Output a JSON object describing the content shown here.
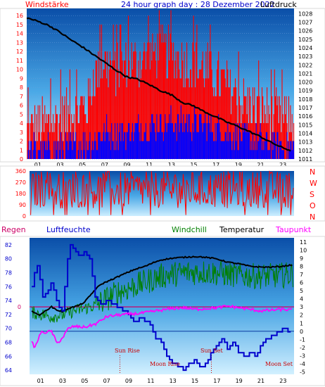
{
  "header": {
    "left_label": "Windstärke",
    "title": "24 hour graph day : 28 Dezember 2022",
    "right_label": "Luftdruck"
  },
  "direction_labels": [
    "N",
    "W",
    "S",
    "O",
    "N"
  ],
  "bottom_header": {
    "regen": "Regen",
    "luftfeuchte": "Luftfeuchte",
    "windchill": "Windchill",
    "temperatur": "Temperatur",
    "taupunkt": "Taupunkt"
  },
  "annotations": {
    "sun_rise": "Sun Rise",
    "sun_set": "Sun Set",
    "moon_rise": "Moon Rise",
    "moon_set": "Moon Set"
  },
  "colors": {
    "panel_top": "#0a4ea8",
    "panel_bottom": "#cdeeff",
    "wind_gust": "#ff0000",
    "wind_avg": "#0000ff",
    "pressure": "#000000",
    "direction": "#ff0000",
    "humidity": "#0000cc",
    "windchill": "#008000",
    "temperature": "#000000",
    "dewpoint": "#ff00ff",
    "rain": "#cc0066",
    "border": "#d8d8d8"
  },
  "chart_data": [
    {
      "type": "bar",
      "name": "wind_pressure",
      "x_ticks": [
        "01",
        "03",
        "05",
        "07",
        "09",
        "11",
        "13",
        "15",
        "17",
        "19",
        "21",
        "23"
      ],
      "xlim": [
        0,
        24
      ],
      "y_left_ticks": [
        0,
        1,
        2,
        3,
        4,
        5,
        6,
        7,
        8,
        9,
        10,
        11,
        12,
        13,
        14,
        15,
        16
      ],
      "y_left_lim": [
        0,
        16.8
      ],
      "y_right_ticks": [
        1011,
        1012,
        1013,
        1014,
        1015,
        1016,
        1017,
        1018,
        1019,
        1020,
        1021,
        1022,
        1023,
        1024,
        1025,
        1026,
        1027,
        1028
      ],
      "y_right_lim": [
        1011,
        1028.6
      ],
      "gust_profile_hours": [
        0,
        2,
        4,
        5.5,
        6,
        7,
        8,
        10,
        12,
        14,
        16,
        18,
        20,
        22,
        24
      ],
      "gust_profile_levels": [
        3,
        4,
        5,
        6,
        9,
        11,
        10,
        11,
        12,
        11,
        10,
        8,
        6,
        5,
        4
      ],
      "avg_profile_hours": [
        0,
        3,
        6,
        7,
        9,
        12,
        15,
        18,
        21,
        24
      ],
      "avg_profile_levels": [
        1,
        1,
        2,
        3,
        3,
        4,
        4,
        3,
        2,
        1
      ],
      "pressure_hours": [
        0,
        1,
        2,
        3,
        4,
        5,
        6,
        7,
        8,
        9,
        10,
        11,
        12,
        13,
        14,
        15,
        16,
        17,
        18,
        19,
        20,
        21,
        22,
        23,
        23.7
      ],
      "pressure_values": [
        1027.5,
        1027.1,
        1026.6,
        1025.8,
        1024.9,
        1024.1,
        1023.2,
        1022.3,
        1021.4,
        1020.6,
        1020.3,
        1019.7,
        1019.0,
        1018.5,
        1017.6,
        1017.2,
        1016.5,
        1015.9,
        1015.3,
        1014.8,
        1014.2,
        1013.6,
        1012.9,
        1012.3,
        1012.0
      ]
    },
    {
      "type": "line",
      "name": "wind_direction",
      "y_ticks": [
        0,
        90,
        180,
        270,
        360
      ],
      "ylim": [
        0,
        360
      ],
      "mean_deg": 210,
      "spread_deg": 150
    },
    {
      "type": "line",
      "name": "humidity_temperature",
      "y_left_ticks": [
        64,
        66,
        68,
        70,
        72,
        74,
        76,
        78,
        80,
        82
      ],
      "y_left_lim": [
        63.4,
        83
      ],
      "y_right_ticks": [
        -5,
        -4,
        -3,
        -2,
        -1,
        0,
        1,
        2,
        3,
        4,
        5,
        6,
        7,
        8,
        9,
        10,
        11
      ],
      "y_right_lim": [
        -5.3,
        11.5
      ],
      "rain_tick_label": "0",
      "humidity_hours": [
        0,
        0.3,
        0.6,
        0.9,
        1.2,
        1.5,
        2.0,
        2.5,
        3.0,
        3.3,
        3.6,
        4.0,
        4.5,
        5.0,
        5.5,
        6.0,
        6.5,
        7.0,
        7.5,
        8.0,
        8.5,
        9.0,
        9.5,
        10.0,
        10.5,
        11.0,
        11.5,
        12.0,
        12.3,
        12.6,
        13.0,
        13.5,
        14.0,
        14.5,
        15.0,
        15.5,
        16.0,
        16.5,
        17.0,
        17.5,
        18.0,
        18.5,
        19.0,
        19.5,
        20.0,
        20.5,
        21.0,
        21.5,
        22.0,
        22.5,
        23.0,
        23.5,
        23.9
      ],
      "humidity_values": [
        74.5,
        76.5,
        79.5,
        77.5,
        74.5,
        75.0,
        76.5,
        73.5,
        72.5,
        78.0,
        82.0,
        81.5,
        80.5,
        81.0,
        80.0,
        74.0,
        73.5,
        74.0,
        73.5,
        73.0,
        72.5,
        72.0,
        71.0,
        71.5,
        71.0,
        70.5,
        68.5,
        68.0,
        66.5,
        65.5,
        65.0,
        64.5,
        64.0,
        65.0,
        65.5,
        64.5,
        65.0,
        66.5,
        67.5,
        68.5,
        67.0,
        68.0,
        66.5,
        66.0,
        66.5,
        66.0,
        67.5,
        68.5,
        69.0,
        69.5,
        70.0,
        69.5,
        69.0
      ],
      "temperature_hours": [
        0,
        0.5,
        1,
        1.5,
        2,
        2.5,
        3,
        3.5,
        4,
        4.5,
        5,
        5.5,
        6,
        6.5,
        7,
        7.5,
        8,
        8.5,
        9,
        9.5,
        10,
        10.5,
        11,
        11.5,
        12,
        13,
        14,
        15,
        16,
        17,
        18,
        19,
        20,
        21,
        22,
        23,
        23.9
      ],
      "temperature_values": [
        2.8,
        2.2,
        2.0,
        2.6,
        3.0,
        2.6,
        2.4,
        2.8,
        3.0,
        3.2,
        3.6,
        4.4,
        5.2,
        5.8,
        6.1,
        6.4,
        6.7,
        7.0,
        7.3,
        7.6,
        7.8,
        8.0,
        8.3,
        8.6,
        8.8,
        9.0,
        9.1,
        9.2,
        9.1,
        8.9,
        8.5,
        8.3,
        8.0,
        7.9,
        7.9,
        8.0,
        8.2
      ],
      "windchill_profile_hours": [
        0,
        2,
        3,
        4,
        5,
        6,
        7,
        8,
        10,
        12,
        14,
        16,
        18,
        20,
        22,
        23.9
      ],
      "windchill_profile_values": [
        2.4,
        1.8,
        2.0,
        2.5,
        2.8,
        3.2,
        4.0,
        4.8,
        5.8,
        6.8,
        7.2,
        7.3,
        7.0,
        6.8,
        6.8,
        7.0
      ],
      "dewpoint_hours": [
        0,
        0.5,
        1,
        2,
        2.5,
        3,
        3.5,
        4,
        5,
        6,
        7,
        8,
        9,
        10,
        11,
        12,
        13,
        14,
        15,
        16,
        17,
        18,
        19,
        20,
        21,
        22,
        23,
        23.9
      ],
      "dewpoint_values": [
        -1.0,
        -2.0,
        -0.2,
        0.0,
        -1.5,
        -0.8,
        0.3,
        0.6,
        0.5,
        0.9,
        1.8,
        2.0,
        2.1,
        2.2,
        2.4,
        2.6,
        2.8,
        2.9,
        2.7,
        2.8,
        2.9,
        3.1,
        2.9,
        2.7,
        2.5,
        2.6,
        2.7,
        2.6
      ],
      "sun_rise_hour": 8.2,
      "sun_set_hour": 16.5
    }
  ]
}
